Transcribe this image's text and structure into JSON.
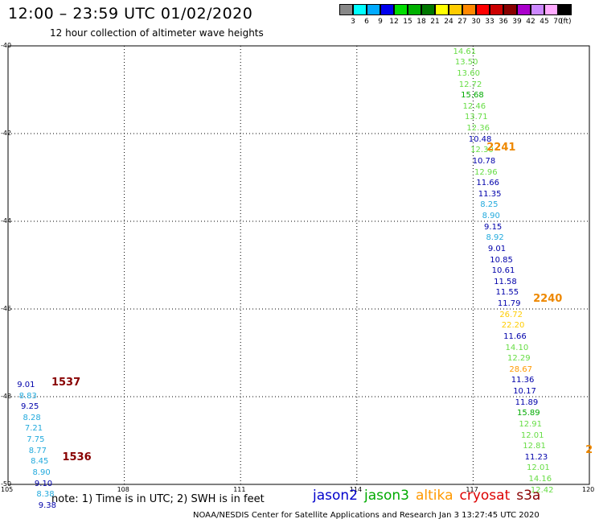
{
  "header": {
    "title": "12:00 – 23:59 UTC 01/02/2020",
    "subtitle": "12 hour collection of altimeter wave heights"
  },
  "legend": {
    "items": [
      {
        "color": "#888888",
        "label": "3"
      },
      {
        "color": "#00ffff",
        "label": "6"
      },
      {
        "color": "#00aaff",
        "label": "9"
      },
      {
        "color": "#0000ee",
        "label": "12"
      },
      {
        "color": "#00dd00",
        "label": "15"
      },
      {
        "color": "#00b000",
        "label": "18"
      },
      {
        "color": "#007700",
        "label": "21"
      },
      {
        "color": "#ffff00",
        "label": "24"
      },
      {
        "color": "#ffcc00",
        "label": "27"
      },
      {
        "color": "#ff8800",
        "label": "30"
      },
      {
        "color": "#ff0000",
        "label": "33"
      },
      {
        "color": "#cc0000",
        "label": "36"
      },
      {
        "color": "#880000",
        "label": "39"
      },
      {
        "color": "#aa00cc",
        "label": "42"
      },
      {
        "color": "#cc88ff",
        "label": "45"
      },
      {
        "color": "#ffaaff",
        "label": "70"
      },
      {
        "color": "#000000",
        "label": ""
      }
    ],
    "unit": "(ft)"
  },
  "map": {
    "lon_range": [
      105,
      120
    ],
    "lat_range": [
      -50,
      -40
    ],
    "lat_labels": [
      "-40",
      "-42",
      "-44",
      "-46",
      "-48",
      "-50"
    ],
    "lon_labels": [
      "105",
      "108",
      "111",
      "114",
      "117",
      "120"
    ],
    "grid_lons": [
      108,
      111,
      114,
      117
    ],
    "grid_lats": [
      -42,
      -44,
      -46,
      -48
    ]
  },
  "colors": {
    "jason2": "#0000cc",
    "jason3": "#00aa00",
    "altika": "#ff9900",
    "cryosat": "#dd0000",
    "s3a": "#880000",
    "jason2_obs": "#0000aa",
    "jason3_obs": "#66dd44",
    "cyan_obs": "#22aadd",
    "altika_obs": "#ffcc00",
    "altika_high": "#ff9900",
    "s3a_track": "#880000",
    "altika_track": "#ee8800"
  },
  "tracks": [
    {
      "label": "2241",
      "lon": 117.35,
      "lat": -42.3,
      "color": "#ee8800"
    },
    {
      "label": "2240",
      "lon": 118.55,
      "lat": -45.75,
      "color": "#ee8800"
    },
    {
      "label": "1537",
      "lon": 106.12,
      "lat": -47.65,
      "color": "#880000"
    },
    {
      "label": "1536",
      "lon": 106.4,
      "lat": -49.35,
      "color": "#880000"
    },
    {
      "label": "2",
      "lon": 119.9,
      "lat": -49.2,
      "color": "#ee8800"
    }
  ],
  "observations": [
    {
      "v": "14.61",
      "lon": 116.4,
      "lat": -40.05,
      "c": "#66dd44"
    },
    {
      "v": "13.50",
      "lon": 116.45,
      "lat": -40.3,
      "c": "#66dd44"
    },
    {
      "v": "13.60",
      "lon": 116.5,
      "lat": -40.55,
      "c": "#66dd44"
    },
    {
      "v": "12.72",
      "lon": 116.55,
      "lat": -40.8,
      "c": "#66dd44"
    },
    {
      "v": "15.68",
      "lon": 116.6,
      "lat": -41.05,
      "c": "#00aa00"
    },
    {
      "v": "12.46",
      "lon": 116.65,
      "lat": -41.3,
      "c": "#66dd44"
    },
    {
      "v": "13.71",
      "lon": 116.7,
      "lat": -41.55,
      "c": "#66dd44"
    },
    {
      "v": "12.36",
      "lon": 116.75,
      "lat": -41.8,
      "c": "#66dd44"
    },
    {
      "v": "10.48",
      "lon": 116.8,
      "lat": -42.05,
      "c": "#0000aa"
    },
    {
      "v": "12.30",
      "lon": 116.85,
      "lat": -42.3,
      "c": "#66dd44"
    },
    {
      "v": "10.78",
      "lon": 116.9,
      "lat": -42.55,
      "c": "#0000aa"
    },
    {
      "v": "12.96",
      "lon": 116.95,
      "lat": -42.8,
      "c": "#66dd44"
    },
    {
      "v": "11.66",
      "lon": 117.0,
      "lat": -43.05,
      "c": "#0000aa"
    },
    {
      "v": "11.35",
      "lon": 117.05,
      "lat": -43.3,
      "c": "#0000aa"
    },
    {
      "v": "8.25",
      "lon": 117.1,
      "lat": -43.55,
      "c": "#22aadd"
    },
    {
      "v": "8.90",
      "lon": 117.15,
      "lat": -43.8,
      "c": "#22aadd"
    },
    {
      "v": "9.15",
      "lon": 117.2,
      "lat": -44.05,
      "c": "#0000aa"
    },
    {
      "v": "8.92",
      "lon": 117.25,
      "lat": -44.3,
      "c": "#22aadd"
    },
    {
      "v": "9.01",
      "lon": 117.3,
      "lat": -44.55,
      "c": "#0000aa"
    },
    {
      "v": "10.85",
      "lon": 117.35,
      "lat": -44.8,
      "c": "#0000aa"
    },
    {
      "v": "10.61",
      "lon": 117.4,
      "lat": -45.05,
      "c": "#0000aa"
    },
    {
      "v": "11.58",
      "lon": 117.45,
      "lat": -45.3,
      "c": "#0000aa"
    },
    {
      "v": "11.55",
      "lon": 117.5,
      "lat": -45.55,
      "c": "#0000aa"
    },
    {
      "v": "11.79",
      "lon": 117.55,
      "lat": -45.8,
      "c": "#0000aa"
    },
    {
      "v": "26.72",
      "lon": 117.6,
      "lat": -46.05,
      "c": "#ffcc00"
    },
    {
      "v": "22.20",
      "lon": 117.65,
      "lat": -46.3,
      "c": "#ffcc00"
    },
    {
      "v": "11.66",
      "lon": 117.7,
      "lat": -46.55,
      "c": "#0000aa"
    },
    {
      "v": "14.10",
      "lon": 117.75,
      "lat": -46.8,
      "c": "#66dd44"
    },
    {
      "v": "12.29",
      "lon": 117.8,
      "lat": -47.05,
      "c": "#66dd44"
    },
    {
      "v": "28.67",
      "lon": 117.85,
      "lat": -47.3,
      "c": "#ff9900"
    },
    {
      "v": "11.36",
      "lon": 117.9,
      "lat": -47.55,
      "c": "#0000aa"
    },
    {
      "v": "10.17",
      "lon": 117.95,
      "lat": -47.8,
      "c": "#0000aa"
    },
    {
      "v": "11.89",
      "lon": 118.0,
      "lat": -48.05,
      "c": "#0000aa"
    },
    {
      "v": "15.89",
      "lon": 118.05,
      "lat": -48.3,
      "c": "#00aa00"
    },
    {
      "v": "12.91",
      "lon": 118.1,
      "lat": -48.55,
      "c": "#66dd44"
    },
    {
      "v": "12.01",
      "lon": 118.15,
      "lat": -48.8,
      "c": "#66dd44"
    },
    {
      "v": "12.81",
      "lon": 118.2,
      "lat": -49.05,
      "c": "#66dd44"
    },
    {
      "v": "11.23",
      "lon": 118.25,
      "lat": -49.3,
      "c": "#0000aa"
    },
    {
      "v": "12.01",
      "lon": 118.3,
      "lat": -49.55,
      "c": "#66dd44"
    },
    {
      "v": "14.16",
      "lon": 118.35,
      "lat": -49.8,
      "c": "#66dd44"
    },
    {
      "v": "12.42",
      "lon": 118.4,
      "lat": -50.05,
      "c": "#66dd44"
    },
    {
      "v": "9.01",
      "lon": 105.15,
      "lat": -47.65,
      "c": "#0000aa"
    },
    {
      "v": "8.83",
      "lon": 105.2,
      "lat": -47.9,
      "c": "#22aadd"
    },
    {
      "v": "9.25",
      "lon": 105.25,
      "lat": -48.15,
      "c": "#0000aa"
    },
    {
      "v": "8.28",
      "lon": 105.3,
      "lat": -48.4,
      "c": "#22aadd"
    },
    {
      "v": "7.21",
      "lon": 105.35,
      "lat": -48.65,
      "c": "#22aadd"
    },
    {
      "v": "7.75",
      "lon": 105.4,
      "lat": -48.9,
      "c": "#22aadd"
    },
    {
      "v": "8.77",
      "lon": 105.45,
      "lat": -49.15,
      "c": "#22aadd"
    },
    {
      "v": "8.45",
      "lon": 105.5,
      "lat": -49.4,
      "c": "#22aadd"
    },
    {
      "v": "8.90",
      "lon": 105.55,
      "lat": -49.65,
      "c": "#22aadd"
    },
    {
      "v": "9.10",
      "lon": 105.6,
      "lat": -49.9,
      "c": "#0000aa"
    },
    {
      "v": "8.38",
      "lon": 105.65,
      "lat": -50.15,
      "c": "#22aadd"
    },
    {
      "v": "9.38",
      "lon": 105.7,
      "lat": -50.4,
      "c": "#0000aa"
    }
  ],
  "note": "note:  1) Time is in UTC;  2) SWH is in feet",
  "satellites": [
    {
      "name": "jason2",
      "color": "#0000cc"
    },
    {
      "name": "jason3",
      "color": "#00aa00"
    },
    {
      "name": "altika",
      "color": "#ff9900"
    },
    {
      "name": "cryosat",
      "color": "#dd0000"
    },
    {
      "name": "s3a",
      "color": "#880000"
    }
  ],
  "footer": "NOAA/NESDIS Center for Satellite Applications and Research    Jan  3 13:27:45 UTC 2020"
}
